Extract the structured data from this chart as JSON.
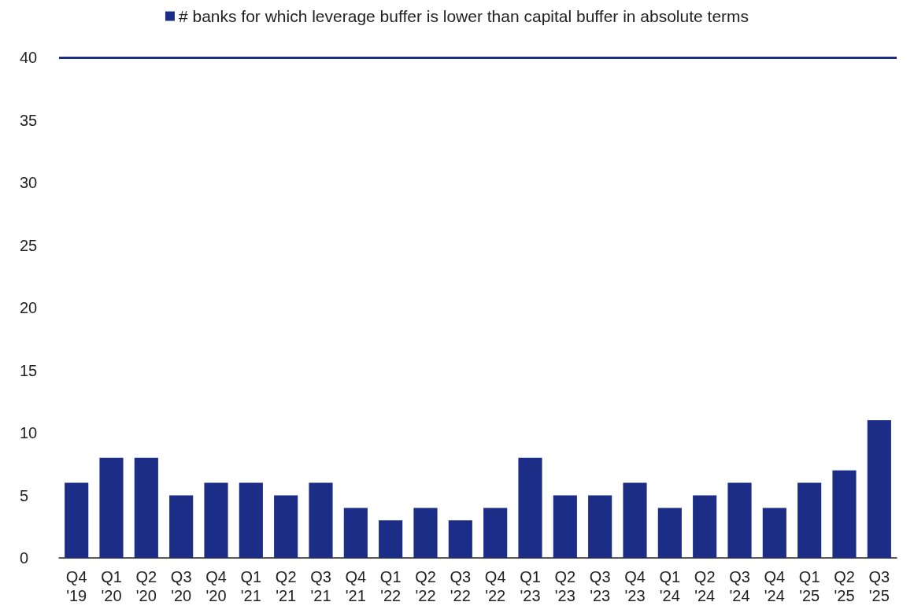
{
  "chart_data": {
    "type": "bar",
    "categories": [
      "Q4 '19",
      "Q1 '20",
      "Q2 '20",
      "Q3 '20",
      "Q4 '20",
      "Q1 '21",
      "Q2 '21",
      "Q3 '21",
      "Q4 '21",
      "Q1 '22",
      "Q2 '22",
      "Q3 '22",
      "Q4 '22",
      "Q1 '23",
      "Q2 '23",
      "Q3 '23",
      "Q4 '23",
      "Q1 '24",
      "Q2 '24",
      "Q3 '24",
      "Q4 '24",
      "Q1 '25",
      "Q2 '25",
      "Q3 '25"
    ],
    "series": [
      {
        "name": "# banks for which leverage buffer is lower than capital buffer in absolute terms",
        "color": "#1b2d87",
        "values": [
          6,
          8,
          8,
          5,
          6,
          6,
          5,
          6,
          4,
          3,
          4,
          3,
          4,
          8,
          5,
          5,
          6,
          4,
          5,
          6,
          4,
          6,
          7,
          11
        ]
      }
    ],
    "ylim": [
      0,
      40
    ],
    "yticks": [
      0,
      5,
      10,
      15,
      20,
      25,
      30,
      35,
      40
    ],
    "ref_lines": [
      {
        "axis": "y",
        "value": 40,
        "color": "#1b2d87"
      }
    ],
    "grid": false,
    "legend": "top"
  }
}
